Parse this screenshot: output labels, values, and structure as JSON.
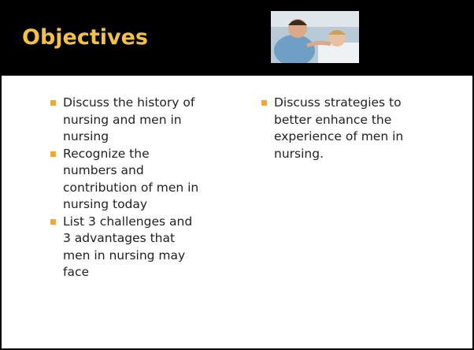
{
  "header": {
    "title": "Objectives"
  },
  "columns": [
    {
      "items": [
        "Discuss the history of nursing and men in nursing",
        "Recognize the numbers and contribution of men in nursing today",
        "List 3 challenges and 3 advantages that men in nursing may face"
      ]
    },
    {
      "items": [
        "Discuss strategies to better enhance the experience of men in nursing."
      ]
    }
  ]
}
